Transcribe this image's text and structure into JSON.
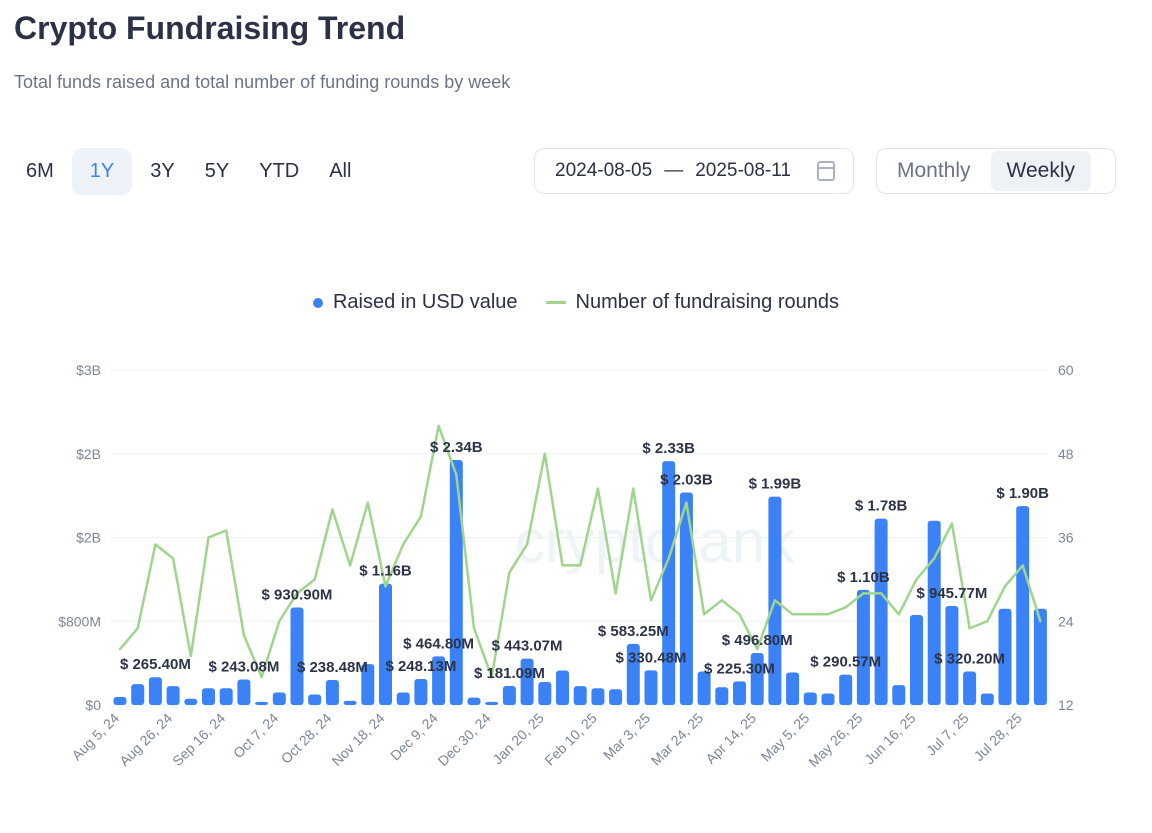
{
  "header": {
    "title": "Crypto Fundraising Trend",
    "subtitle": "Total funds raised and total number of funding rounds by week"
  },
  "ranges": [
    {
      "label": "6M",
      "active": false
    },
    {
      "label": "1Y",
      "active": true
    },
    {
      "label": "3Y",
      "active": false
    },
    {
      "label": "5Y",
      "active": false
    },
    {
      "label": "YTD",
      "active": false
    },
    {
      "label": "All",
      "active": false
    }
  ],
  "date_range": {
    "start": "2024-08-05",
    "separator": "—",
    "end": "2025-08-11",
    "icon": "calendar-icon"
  },
  "granularity": [
    {
      "label": "Monthly",
      "active": false
    },
    {
      "label": "Weekly",
      "active": true
    }
  ],
  "watermark": "cryptorank",
  "colors": {
    "bar": "#3b82f6",
    "line": "#9fd58c",
    "accent": "#3b82f6"
  },
  "chart_data": {
    "type": "bar+line",
    "legend": [
      "Raised in USD value",
      "Number of fundraising rounds"
    ],
    "legend_position": "top-center",
    "left_axis": {
      "ticks": [
        "$0",
        "$800M",
        "$2B",
        "$2B",
        "$3B"
      ],
      "range_usd_billions": [
        0,
        3.2
      ]
    },
    "right_axis": {
      "ticks": [
        "12",
        "24",
        "36",
        "48",
        "60"
      ],
      "range": [
        12,
        60
      ]
    },
    "x_tick_labels": [
      "Aug 5, 24",
      "Aug 26, 24",
      "Sep 16, 24",
      "Oct 7, 24",
      "Oct 28, 24",
      "Nov 18, 24",
      "Dec 9, 24",
      "Dec 30, 24",
      "Jan 20, 25",
      "Feb 10, 25",
      "Mar 3, 25",
      "Mar 24, 25",
      "Apr 14, 25",
      "May 5, 25",
      "May 26, 25",
      "Jun 16, 25",
      "Jul 7, 25",
      "Jul 28, 25"
    ],
    "x_tick_every": 3,
    "raised_usd_billions": [
      0.076,
      0.2,
      0.2654,
      0.18,
      0.06,
      0.16,
      0.16,
      0.2431,
      0.03,
      0.12,
      0.9309,
      0.1,
      0.2385,
      0.04,
      0.39,
      1.16,
      0.12,
      0.2481,
      0.4648,
      2.34,
      0.07,
      0.03,
      0.1811,
      0.4431,
      0.22,
      0.33,
      0.18,
      0.16,
      0.15,
      0.5833,
      0.3305,
      2.33,
      2.03,
      0.32,
      0.17,
      0.2253,
      0.4968,
      1.99,
      0.31,
      0.12,
      0.11,
      0.2906,
      1.1,
      1.78,
      0.19,
      0.86,
      1.76,
      0.9458,
      0.3202,
      0.11,
      0.92,
      1.9,
      0.92
    ],
    "rounds": [
      20,
      23,
      35,
      33,
      19,
      36,
      37,
      22,
      16,
      24,
      28,
      30,
      40,
      32,
      41,
      29,
      35,
      39,
      52,
      45,
      23,
      16,
      31,
      35,
      48,
      32,
      32,
      43,
      28,
      43,
      27,
      33,
      41,
      25,
      27,
      25,
      20,
      27,
      25,
      25,
      25,
      26,
      28,
      28,
      25,
      30,
      33,
      38,
      23,
      24,
      29,
      32,
      24
    ],
    "data_labels": [
      {
        "bar": 2,
        "text": "$ 265.40M"
      },
      {
        "bar": 7,
        "text": "$ 243.08M"
      },
      {
        "bar": 10,
        "text": "$ 930.90M"
      },
      {
        "bar": 12,
        "text": "$ 238.48M"
      },
      {
        "bar": 15,
        "text": "$ 1.16B"
      },
      {
        "bar": 17,
        "text": "$ 248.13M"
      },
      {
        "bar": 18,
        "text": "$ 464.80M"
      },
      {
        "bar": 19,
        "text": "$ 2.34B"
      },
      {
        "bar": 22,
        "text": "$ 181.09M"
      },
      {
        "bar": 23,
        "text": "$ 443.07M"
      },
      {
        "bar": 29,
        "text": "$ 583.25M"
      },
      {
        "bar": 30,
        "text": "$ 330.48M"
      },
      {
        "bar": 31,
        "text": "$ 2.33B"
      },
      {
        "bar": 32,
        "text": "$ 2.03B"
      },
      {
        "bar": 35,
        "text": "$ 225.30M"
      },
      {
        "bar": 36,
        "text": "$ 496.80M"
      },
      {
        "bar": 37,
        "text": "$ 1.99B"
      },
      {
        "bar": 41,
        "text": "$ 290.57M"
      },
      {
        "bar": 42,
        "text": "$ 1.10B"
      },
      {
        "bar": 43,
        "text": "$ 1.78B"
      },
      {
        "bar": 47,
        "text": "$ 945.77M"
      },
      {
        "bar": 48,
        "text": "$ 320.20M"
      },
      {
        "bar": 51,
        "text": "$ 1.90B"
      }
    ]
  }
}
